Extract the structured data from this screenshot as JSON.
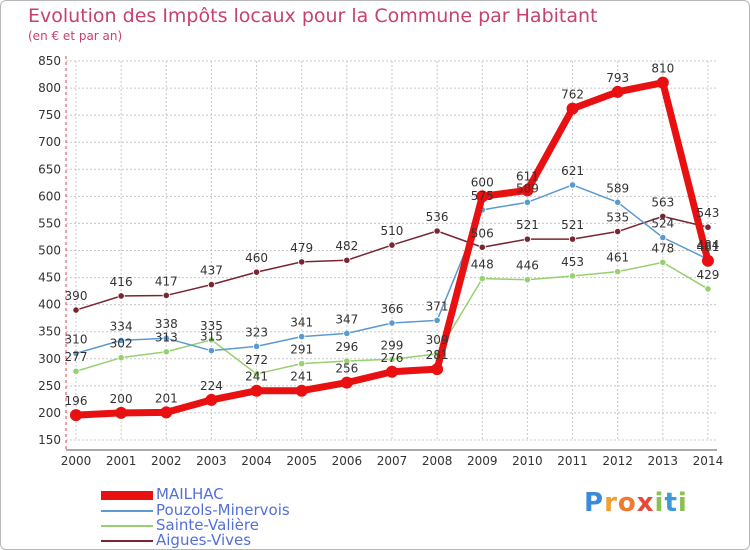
{
  "title": "Evolution des Impôts locaux pour la Commune par Habitant",
  "subtitle": "(en € et par an)",
  "logo_text": "Proxiti",
  "chart_data": {
    "type": "line",
    "x": [
      "2000",
      "2001",
      "2002",
      "2003",
      "2004",
      "2005",
      "2006",
      "2007",
      "2008",
      "2009",
      "2010",
      "2011",
      "2012",
      "2013",
      "2014"
    ],
    "ylim": [
      150,
      850
    ],
    "yticks": [
      150,
      200,
      250,
      300,
      350,
      400,
      450,
      500,
      550,
      600,
      650,
      700,
      750,
      800,
      850
    ],
    "grid": true,
    "legend_position": "bottom-left",
    "series": [
      {
        "name": "MAILHAC",
        "color": "#e81010",
        "values": [
          196,
          200,
          201,
          224,
          241,
          241,
          256,
          276,
          281,
          600,
          611,
          762,
          793,
          810,
          481
        ]
      },
      {
        "name": "Pouzols-Minervois",
        "color": "#5a9ad0",
        "values": [
          310,
          334,
          338,
          315,
          323,
          341,
          347,
          366,
          371,
          575,
          589,
          621,
          589,
          524,
          484
        ]
      },
      {
        "name": "Sainte-Valière",
        "color": "#96d070",
        "values": [
          277,
          302,
          313,
          335,
          272,
          291,
          296,
          299,
          309,
          448,
          446,
          453,
          461,
          478,
          429
        ]
      },
      {
        "name": "Aigues-Vives",
        "color": "#7a2630",
        "values": [
          390,
          416,
          417,
          437,
          460,
          479,
          482,
          510,
          536,
          506,
          521,
          521,
          535,
          563,
          543
        ]
      }
    ]
  }
}
